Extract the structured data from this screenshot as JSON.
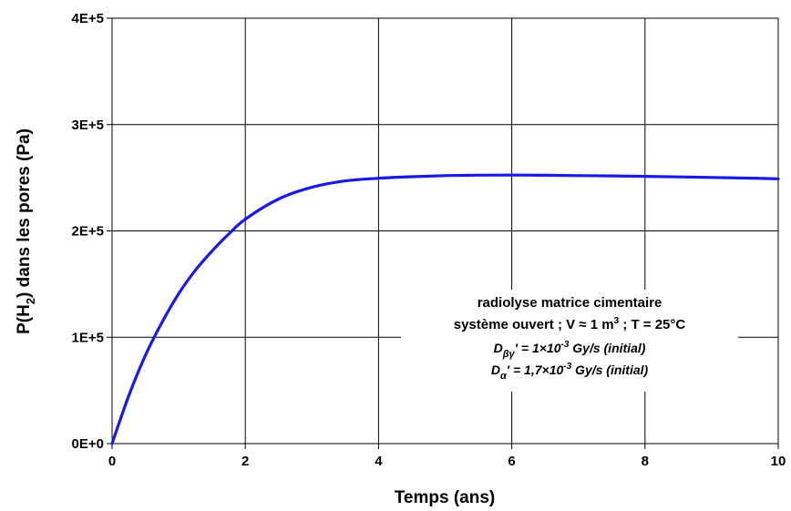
{
  "chart_data": {
    "type": "line",
    "xlabel": "Temps  (ans)",
    "ylabel_parts": {
      "pre": "P(H",
      "sub": "2",
      "post": ") dans les pores  (Pa)"
    },
    "xlim": [
      0,
      10
    ],
    "ylim": [
      0,
      400000
    ],
    "x_ticks": [
      0,
      2,
      4,
      6,
      8,
      10
    ],
    "x_tick_labels": [
      "0",
      "2",
      "4",
      "6",
      "8",
      "10"
    ],
    "y_ticks": [
      0,
      100000,
      200000,
      300000,
      400000
    ],
    "y_tick_labels": [
      "0E+0",
      "1E+5",
      "2E+5",
      "3E+5",
      "4E+5"
    ],
    "grid": true,
    "series": [
      {
        "color": "#1a1ae6",
        "x": [
          0,
          0.25,
          0.5,
          0.75,
          1,
          1.25,
          1.5,
          1.75,
          2,
          2.5,
          3,
          3.5,
          4,
          4.5,
          5,
          5.5,
          6,
          6.5,
          7,
          7.5,
          8,
          8.5,
          9,
          9.5,
          10
        ],
        "y": [
          0,
          45000,
          83000,
          114000,
          141000,
          163000,
          181000,
          197000,
          211000,
          230000,
          241000,
          247000,
          249500,
          251000,
          252000,
          252400,
          252500,
          252300,
          252000,
          251700,
          251300,
          250800,
          250300,
          249700,
          249000
        ]
      }
    ],
    "annotation": {
      "line1": "radiolyse matrice cimentaire",
      "line2_pre": "système ouvert ; V ≈ 1 m",
      "line2_sup": "3",
      "line2_post": " ; T = 25°C",
      "line3": {
        "sym": "D",
        "sub": "βγ",
        "mid": "' = 1×10",
        "sup": "-3",
        "post": " Gy/s  (initial)"
      },
      "line4": {
        "sym": "D",
        "sub": "α",
        "mid": "' = 1,7×10",
        "sup": "-3",
        "post": " Gy/s  (initial)"
      }
    }
  }
}
